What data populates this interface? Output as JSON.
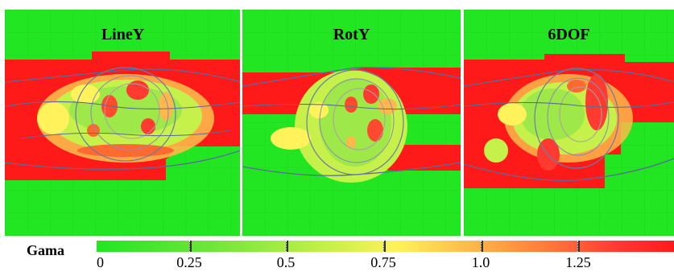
{
  "panels": [
    {
      "title": "LineY"
    },
    {
      "title": "RotY"
    },
    {
      "title": "6DOF"
    }
  ],
  "legend": {
    "label": "Gama",
    "ticks": [
      "0",
      "0.25",
      "0.5",
      "0.75",
      "1.0",
      "1.25"
    ]
  },
  "colors": {
    "pass": "#22e622",
    "mid": "#fff25a",
    "fail": "#ff1a1a",
    "contour": "#5a6a9a"
  }
}
